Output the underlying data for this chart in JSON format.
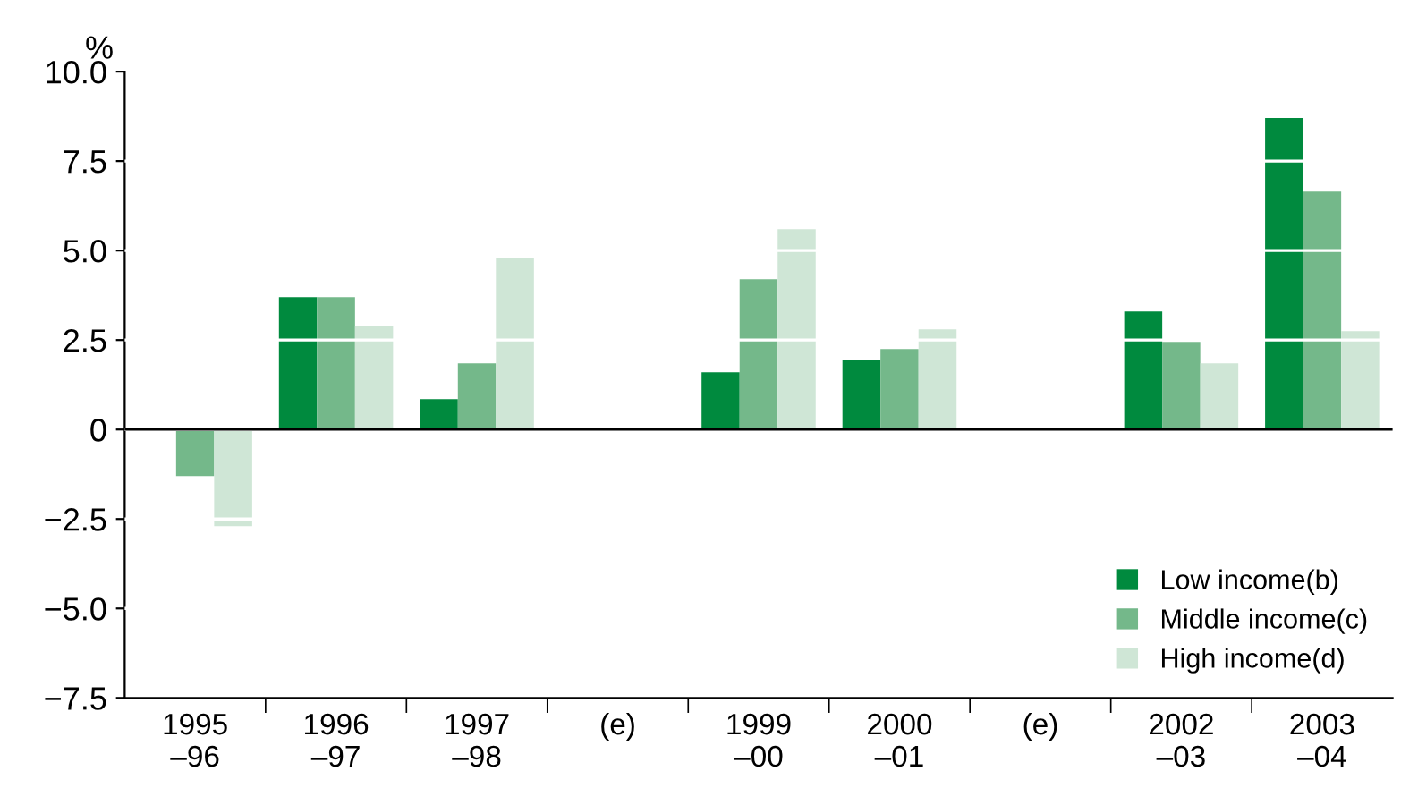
{
  "chart_data": {
    "type": "bar",
    "ylabel": "%",
    "categories": [
      "1995\n–96",
      "1996\n–97",
      "1997\n–98",
      "(e)",
      "1999\n–00",
      "2000\n–01",
      "(e)",
      "2002\n–03",
      "2003\n–04"
    ],
    "series": [
      {
        "name": "Low income(b)",
        "color": "#008a3e",
        "values": [
          0.05,
          3.7,
          0.85,
          null,
          1.6,
          1.95,
          null,
          3.3,
          8.7
        ]
      },
      {
        "name": "Middle income(c)",
        "color": "#74b88a",
        "values": [
          -1.3,
          3.7,
          1.85,
          null,
          4.2,
          2.25,
          null,
          2.45,
          6.65
        ]
      },
      {
        "name": "High income(d)",
        "color": "#cfe6d6",
        "values": [
          -2.7,
          2.9,
          4.8,
          null,
          5.6,
          2.8,
          null,
          1.85,
          2.75
        ]
      }
    ],
    "ylim": [
      -7.5,
      10.0
    ],
    "yticks": [
      {
        "value": -7.5,
        "label": "−7.5"
      },
      {
        "value": -5.0,
        "label": "−5.0"
      },
      {
        "value": -2.5,
        "label": "−2.5"
      },
      0,
      2.5,
      {
        "value": 5,
        "label": "5.0"
      },
      7.5,
      {
        "value": 10,
        "label": "10.0"
      }
    ],
    "ref_lines": [
      {
        "axis": "y",
        "value": 0,
        "color": "#000000"
      }
    ],
    "grid": "y",
    "legend": "bottom right"
  }
}
